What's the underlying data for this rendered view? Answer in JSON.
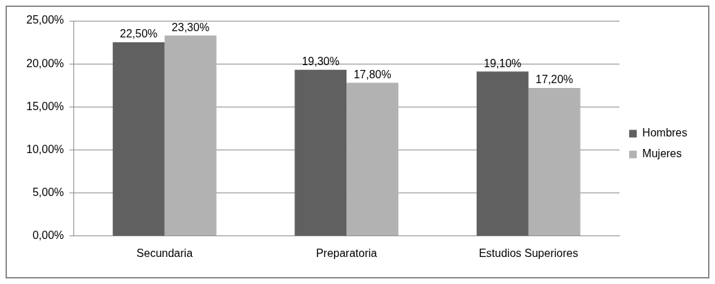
{
  "chart_data": {
    "type": "bar",
    "categories": [
      "Secundaria",
      "Preparatoria",
      "Estudios Superiores"
    ],
    "series": [
      {
        "name": "Hombres",
        "color": "#606060",
        "values": [
          22.5,
          19.3,
          19.1
        ],
        "value_labels": [
          "22,50%",
          "19,30%",
          "19,10%"
        ]
      },
      {
        "name": "Mujeres",
        "color": "#b2b2b2",
        "values": [
          23.3,
          17.8,
          17.2
        ],
        "value_labels": [
          "23,30%",
          "17,80%",
          "17,20%"
        ]
      }
    ],
    "ylim": [
      0,
      25
    ],
    "yticks": [
      {
        "value": 0,
        "label": "0,00%"
      },
      {
        "value": 5,
        "label": "5,00%"
      },
      {
        "value": 10,
        "label": "10,00%"
      },
      {
        "value": 15,
        "label": "15,00%"
      },
      {
        "value": 20,
        "label": "20,00%"
      },
      {
        "value": 25,
        "label": "25,00%"
      }
    ],
    "grid": "y",
    "legend": "right"
  }
}
